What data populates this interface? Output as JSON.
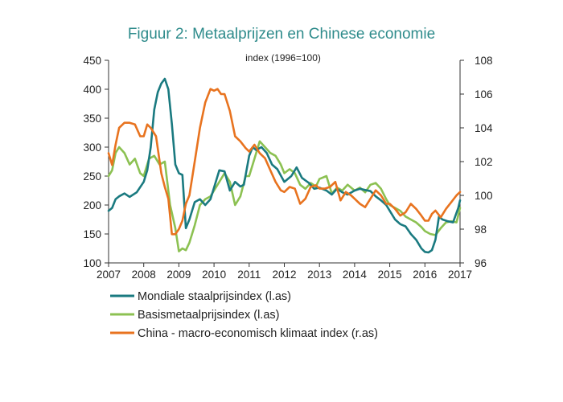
{
  "chart_data": {
    "type": "line",
    "title": "Figuur  2: Metaalprijzen  en Chinese  economie",
    "subtitle": "index (1996=100)",
    "xlim": [
      2007,
      2017
    ],
    "xticks": [
      "2007",
      "2008",
      "2009",
      "2010",
      "2011",
      "2012",
      "2013",
      "2014",
      "2015",
      "2016",
      "2017"
    ],
    "ylim_left": [
      100,
      450
    ],
    "yticks_left": [
      "100",
      "150",
      "200",
      "250",
      "300",
      "350",
      "400",
      "450"
    ],
    "ylim_right": [
      96,
      108
    ],
    "yticks_right": [
      "96",
      "98",
      "100",
      "102",
      "104",
      "106",
      "108"
    ],
    "grid": false,
    "legend_position": "bottom",
    "series": [
      {
        "name": "Mondiale staalprijsindex (l.as)",
        "axis": "left",
        "color": "#1a7a80",
        "x": [
          2007.0,
          2007.1,
          2007.2,
          2007.3,
          2007.45,
          2007.6,
          2007.8,
          2008.0,
          2008.1,
          2008.2,
          2008.3,
          2008.4,
          2008.5,
          2008.6,
          2008.7,
          2008.8,
          2008.9,
          2009.0,
          2009.1,
          2009.2,
          2009.3,
          2009.45,
          2009.6,
          2009.75,
          2009.9,
          2010.0,
          2010.15,
          2010.3,
          2010.45,
          2010.6,
          2010.75,
          2010.85,
          2011.0,
          2011.1,
          2011.2,
          2011.35,
          2011.5,
          2011.65,
          2011.8,
          2012.0,
          2012.2,
          2012.35,
          2012.5,
          2012.7,
          2012.85,
          2013.0,
          2013.2,
          2013.35,
          2013.5,
          2013.65,
          2013.8,
          2014.0,
          2014.15,
          2014.3,
          2014.45,
          2014.6,
          2014.75,
          2014.9,
          2015.0,
          2015.15,
          2015.3,
          2015.45,
          2015.6,
          2015.75,
          2015.9,
          2016.0,
          2016.1,
          2016.2,
          2016.3,
          2016.4,
          2016.5,
          2016.65,
          2016.8,
          2016.95,
          2017.0
        ],
        "values": [
          190,
          195,
          210,
          215,
          220,
          214,
          222,
          240,
          260,
          300,
          365,
          395,
          410,
          418,
          400,
          340,
          270,
          255,
          252,
          160,
          175,
          205,
          210,
          200,
          210,
          230,
          260,
          258,
          225,
          240,
          232,
          235,
          285,
          300,
          295,
          300,
          290,
          270,
          262,
          240,
          250,
          265,
          247,
          238,
          228,
          230,
          225,
          218,
          228,
          222,
          218,
          225,
          228,
          226,
          224,
          215,
          208,
          200,
          190,
          175,
          167,
          163,
          150,
          140,
          125,
          119,
          118,
          122,
          140,
          180,
          175,
          172,
          170,
          195,
          208
        ]
      },
      {
        "name": "Basismetaalprijsindex (l.as)",
        "axis": "left",
        "color": "#8cc152",
        "x": [
          2007.0,
          2007.1,
          2007.2,
          2007.3,
          2007.45,
          2007.6,
          2007.75,
          2007.9,
          2008.0,
          2008.15,
          2008.3,
          2008.45,
          2008.6,
          2008.75,
          2008.9,
          2009.0,
          2009.1,
          2009.2,
          2009.3,
          2009.45,
          2009.6,
          2009.75,
          2009.9,
          2010.0,
          2010.15,
          2010.3,
          2010.45,
          2010.6,
          2010.75,
          2010.9,
          2011.0,
          2011.15,
          2011.3,
          2011.45,
          2011.6,
          2011.75,
          2011.9,
          2012.0,
          2012.15,
          2012.3,
          2012.45,
          2012.6,
          2012.75,
          2012.9,
          2013.0,
          2013.2,
          2013.35,
          2013.5,
          2013.65,
          2013.8,
          2014.0,
          2014.15,
          2014.3,
          2014.45,
          2014.6,
          2014.75,
          2014.9,
          2015.0,
          2015.15,
          2015.3,
          2015.45,
          2015.6,
          2015.75,
          2015.9,
          2016.0,
          2016.15,
          2016.3,
          2016.45,
          2016.6,
          2016.75,
          2016.9,
          2017.0
        ],
        "values": [
          250,
          260,
          290,
          300,
          290,
          270,
          280,
          255,
          250,
          280,
          285,
          270,
          275,
          200,
          160,
          120,
          125,
          122,
          135,
          165,
          200,
          210,
          215,
          225,
          240,
          255,
          240,
          200,
          215,
          250,
          250,
          280,
          310,
          300,
          290,
          285,
          270,
          255,
          262,
          255,
          235,
          228,
          238,
          232,
          245,
          250,
          220,
          230,
          225,
          235,
          225,
          230,
          222,
          235,
          238,
          228,
          210,
          200,
          195,
          190,
          180,
          175,
          170,
          162,
          155,
          150,
          148,
          160,
          170,
          172,
          170,
          195
        ]
      },
      {
        "name": "China - macro-economisch klimaat index (r.as)",
        "axis": "right",
        "color": "#e8731f",
        "x": [
          2007.0,
          2007.1,
          2007.2,
          2007.3,
          2007.45,
          2007.6,
          2007.75,
          2007.9,
          2008.0,
          2008.1,
          2008.2,
          2008.35,
          2008.5,
          2008.6,
          2008.7,
          2008.8,
          2008.9,
          2009.0,
          2009.1,
          2009.2,
          2009.3,
          2009.45,
          2009.6,
          2009.75,
          2009.9,
          2010.0,
          2010.1,
          2010.2,
          2010.3,
          2010.45,
          2010.6,
          2010.75,
          2010.9,
          2011.0,
          2011.15,
          2011.3,
          2011.45,
          2011.6,
          2011.75,
          2011.9,
          2012.0,
          2012.15,
          2012.3,
          2012.45,
          2012.6,
          2012.75,
          2012.9,
          2013.0,
          2013.15,
          2013.3,
          2013.45,
          2013.6,
          2013.75,
          2013.9,
          2014.0,
          2014.15,
          2014.3,
          2014.45,
          2014.6,
          2014.75,
          2014.9,
          2015.0,
          2015.15,
          2015.3,
          2015.45,
          2015.6,
          2015.75,
          2015.9,
          2016.0,
          2016.1,
          2016.2,
          2016.3,
          2016.45,
          2016.6,
          2016.75,
          2016.9,
          2017.0
        ],
        "values": [
          102.5,
          101.8,
          103,
          104,
          104.3,
          104.3,
          104.2,
          103.5,
          103.5,
          104.2,
          104,
          103.5,
          101.3,
          100.5,
          99.8,
          97.7,
          97.7,
          98,
          98.5,
          99.5,
          100,
          102,
          104,
          105.5,
          106.3,
          106.2,
          106.3,
          106,
          106,
          105,
          103.5,
          103.2,
          102.8,
          102.6,
          103,
          102.5,
          102.2,
          101.5,
          100.8,
          100.3,
          100.2,
          100.5,
          100.4,
          99.5,
          99.8,
          100.5,
          100.6,
          100.4,
          100.4,
          100.5,
          100.8,
          99.7,
          100.2,
          100,
          99.8,
          99.5,
          99.3,
          99.8,
          100.3,
          100,
          99.5,
          99.5,
          99.2,
          98.8,
          99,
          99.5,
          99.2,
          98.8,
          98.5,
          98.5,
          98.9,
          99.1,
          98.7,
          99.2,
          99.6,
          100,
          100.2
        ]
      }
    ]
  }
}
